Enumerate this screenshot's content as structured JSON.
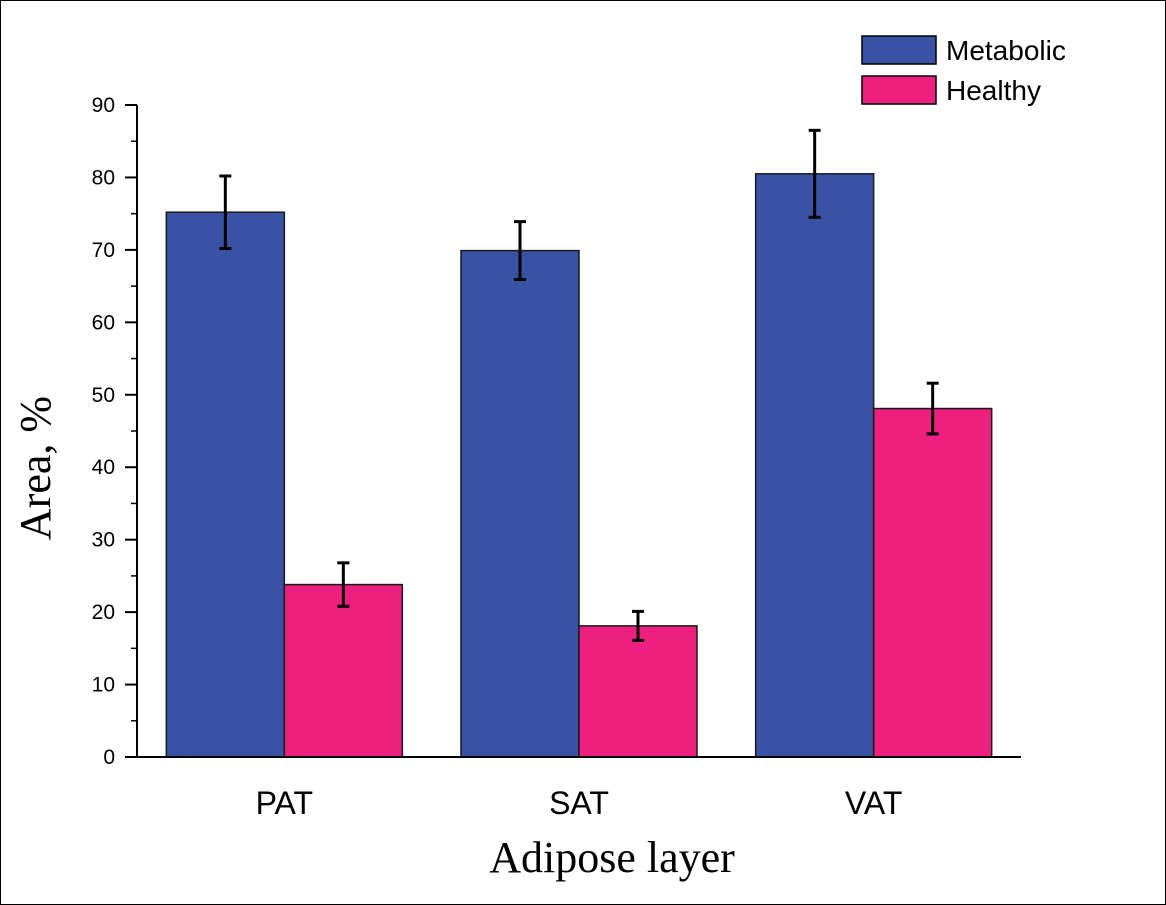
{
  "chart_data": {
    "type": "bar",
    "categories": [
      "PAT",
      "SAT",
      "VAT"
    ],
    "series": [
      {
        "name": "Metabolic",
        "color": "#3953a4",
        "values": [
          75.2,
          69.9,
          80.5
        ],
        "errors": [
          5.0,
          4.0,
          6.0
        ]
      },
      {
        "name": "Healthy",
        "color": "#ed1f7f",
        "values": [
          23.8,
          18.1,
          48.1
        ],
        "errors": [
          3.0,
          2.0,
          3.5
        ]
      }
    ],
    "xlabel": "Adipose layer",
    "ylabel": "Area, %",
    "ylim": [
      0,
      90
    ],
    "yticks": [
      0,
      10,
      20,
      30,
      40,
      50,
      60,
      70,
      80,
      90
    ],
    "legend_position": "top-right",
    "grid": false
  }
}
